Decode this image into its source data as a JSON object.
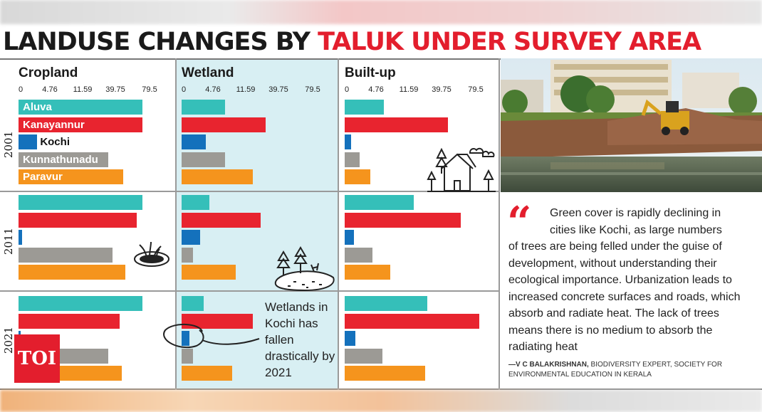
{
  "title": {
    "part1": "LANDUSE CHANGES BY ",
    "part2": "TALUK UNDER SURVEY AREA"
  },
  "colors": {
    "accent": "#e31e2d",
    "wetland_bg": "#d6eef2"
  },
  "chart_data": {
    "type": "bar",
    "orientation": "horizontal",
    "panels": [
      "Cropland",
      "Wetland",
      "Built-up"
    ],
    "years": [
      "2001",
      "2011",
      "2021"
    ],
    "tick_labels": [
      "0",
      "4.76",
      "11.59",
      "39.75",
      "79.5"
    ],
    "categories": [
      "Aluva",
      "Kanayannur",
      "Kochi",
      "Kunnathunadu",
      "Paravur"
    ],
    "series_colors": {
      "Aluva": "#35bfb9",
      "Kanayannur": "#e8242f",
      "Kochi": "#1471bc",
      "Kunnathunadu": "#9c9a95",
      "Paravur": "#f5941d"
    },
    "values": {
      "Cropland": {
        "2001": [
          33,
          33,
          5,
          24,
          28
        ],
        "2011": [
          33,
          31.5,
          1,
          25,
          28.5
        ],
        "2021": [
          33,
          27,
          0.5,
          24,
          27.5
        ]
      },
      "Wetland": {
        "2001": [
          11.5,
          22.5,
          6.5,
          11.5,
          19
        ],
        "2011": [
          7.5,
          21,
          5,
          3,
          14.5
        ],
        "2021": [
          5.8,
          19,
          2,
          3,
          13.5
        ]
      },
      "Built-up": {
        "2001": [
          10.5,
          27.5,
          1.8,
          4,
          6.8
        ],
        "2011": [
          18.5,
          31,
          2.5,
          7.5,
          12.2
        ],
        "2021": [
          22,
          36,
          2.8,
          10,
          21.5
        ]
      }
    }
  },
  "annotation": "Wetlands in Kochi has fallen drastically by 2021",
  "quote": {
    "line1": "Green cover is rapidly declining in",
    "line2": "cities like Kochi, as large numbers",
    "rest": "of trees are being felled under the guise of development, without understanding their ecological importance. Urbanization leads to increased concrete surfaces and roads, which absorb and radiate heat. The lack of trees means there is no medium to absorb the radiating heat"
  },
  "credit": {
    "name": "—V C BALAKRISHNAN,",
    "role": " BIODIVERSITY EXPERT, SOCIETY FOR ENVIRONMENTAL EDUCATION IN KERALA"
  },
  "logo": "TOI"
}
